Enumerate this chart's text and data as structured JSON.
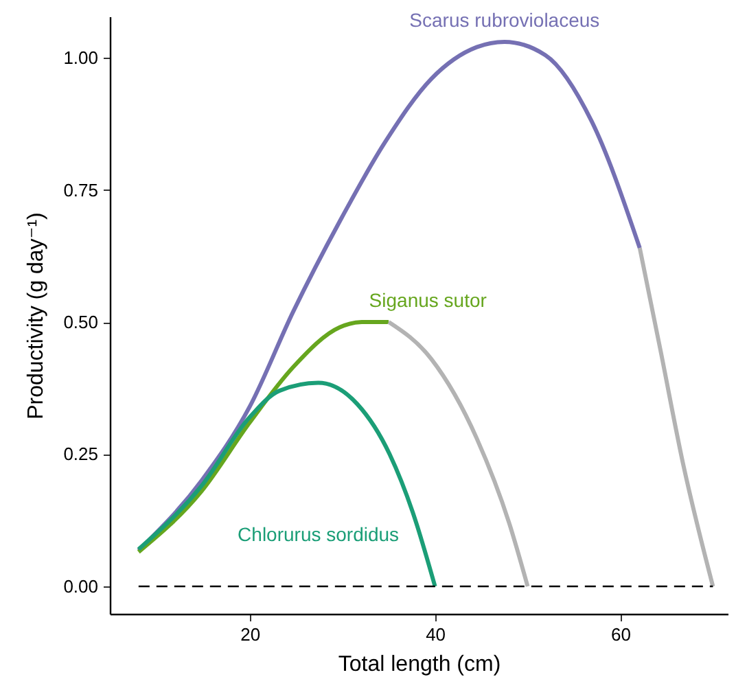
{
  "chart_data": {
    "type": "line",
    "xlabel": "Total length (cm)",
    "ylabel": "Productivity (g day⁻¹)",
    "xlim": [
      4.9,
      71.6
    ],
    "xticks": [
      20,
      40,
      60
    ],
    "ylim": [
      -0.052,
      1.078
    ],
    "yticks": [
      {
        "value": 0,
        "label": "0.00"
      },
      {
        "value": 0.25,
        "label": "0.25"
      },
      {
        "value": 0.5,
        "label": "0.50"
      },
      {
        "value": 0.75,
        "label": "0.75"
      },
      {
        "value": 1,
        "label": "1.00"
      }
    ],
    "grid": false,
    "series": [
      {
        "name": "Scarus rubroviolaceus",
        "color": "#7570b3",
        "x": [
          8,
          14.8,
          20,
          24.7,
          29.7,
          34.6,
          39.6,
          44.5,
          47.5,
          51.9,
          56.9,
          62.1
        ],
        "values": [
          0.068,
          0.2,
          0.34,
          0.52,
          0.69,
          0.84,
          0.96,
          1.02,
          1.03,
          1.005,
          0.88,
          0.64
        ]
      },
      {
        "name": "Siganus sutor",
        "color": "#66a61e",
        "x": [
          8,
          14.8,
          20,
          24.7,
          29.7,
          32.1,
          35
        ],
        "values": [
          0.065,
          0.18,
          0.31,
          0.415,
          0.49,
          0.5,
          0.5
        ]
      },
      {
        "name": "Chlorurus sordidus",
        "color": "#1b9e77",
        "x": [
          8,
          14.8,
          20,
          23.2,
          27.4,
          31.6,
          35.1,
          37.6,
          40
        ],
        "values": [
          0.07,
          0.19,
          0.32,
          0.37,
          0.385,
          0.345,
          0.25,
          0.14,
          0
        ]
      },
      {
        "color": "#b3b3b3",
        "x": [
          62.1,
          64.3,
          66.8,
          70
        ],
        "values": [
          0.64,
          0.45,
          0.23,
          0
        ]
      },
      {
        "color": "#b3b3b3",
        "x": [
          35,
          39.6,
          44.5,
          48,
          50
        ],
        "values": [
          0.5,
          0.43,
          0.28,
          0.12,
          0
        ]
      },
      {
        "color": "#000000",
        "line_style": "dashed",
        "x": [
          8,
          70
        ],
        "values": [
          0,
          0
        ]
      }
    ]
  }
}
